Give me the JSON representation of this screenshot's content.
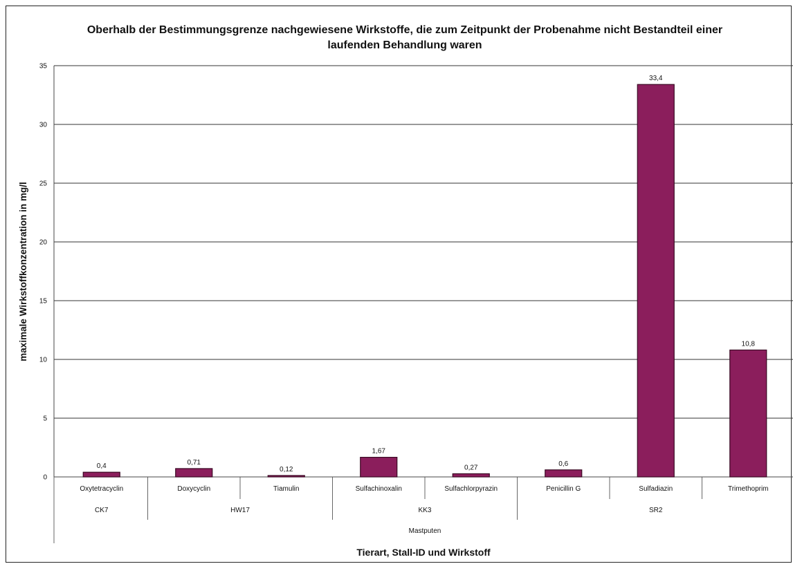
{
  "chart_data": {
    "type": "bar",
    "title_line1": "Oberhalb der Bestimmungsgrenze nachgewiesene Wirkstoffe, die zum Zeitpunkt der Probenahme nicht Bestandteil einer",
    "title_line2": "laufenden Behandlung waren",
    "ylabel": "maximale Wirkstoffkonzentration in mg/l",
    "xlabel": "Tierart, Stall-ID und Wirkstoff",
    "ylim": [
      0,
      35
    ],
    "yticks": [
      "0",
      "5",
      "10",
      "15",
      "20",
      "25",
      "30",
      "35"
    ],
    "grid": true,
    "categories": [
      "Oxytetracyclin",
      "Doxycyclin",
      "Tiamulin",
      "Sulfachinoxalin",
      "Sulfachlorpyrazin",
      "Penicillin G",
      "Sulfadiazin",
      "Trimethoprim"
    ],
    "values": [
      0.4,
      0.71,
      0.12,
      1.67,
      0.27,
      0.6,
      33.4,
      10.8
    ],
    "value_labels": [
      "0,4",
      "0,71",
      "0,12",
      "1,67",
      "0,27",
      "0,6",
      "33,4",
      "10,8"
    ],
    "stall_groups": [
      {
        "label": "CK7",
        "span": 1
      },
      {
        "label": "HW17",
        "span": 2
      },
      {
        "label": "KK3",
        "span": 2
      },
      {
        "label": "SR2",
        "span": 3
      }
    ],
    "animal_group": {
      "label": "Mastputen",
      "span": 8
    },
    "bar_color": "#8b1e5c"
  }
}
